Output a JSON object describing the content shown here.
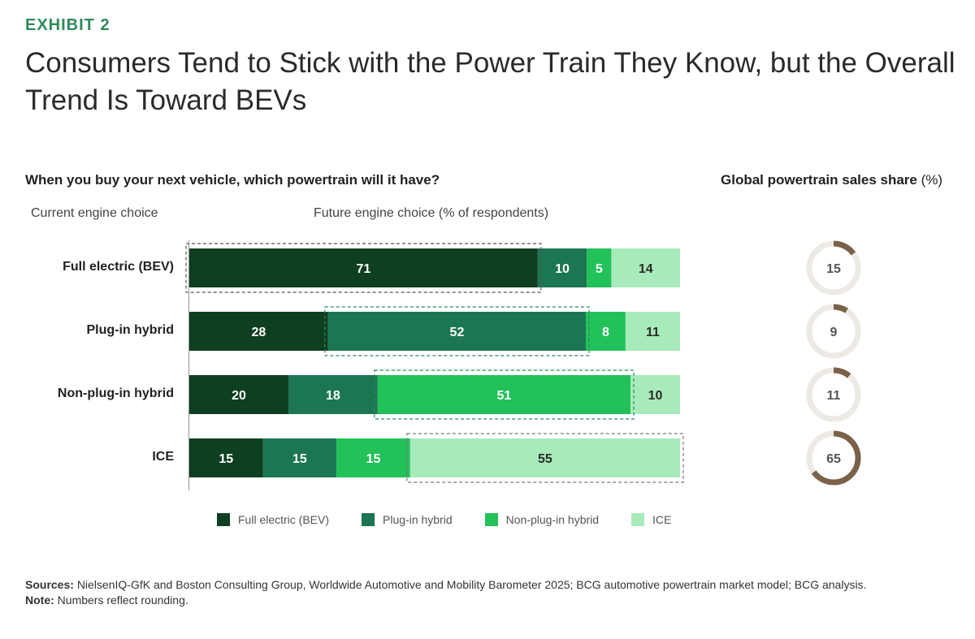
{
  "header": {
    "exhibit": "EXHIBIT 2",
    "title": "Consumers Tend to Stick with the Power Train They Know, but the Overall Trend Is Toward BEVs"
  },
  "question": "When you buy your next vehicle, which powertrain will it have?",
  "sales_title": "Global powertrain sales share",
  "sales_unit": "(%)",
  "current_label": "Current engine choice",
  "future_label": "Future engine choice (% of respondents)",
  "colors": {
    "bev": "#0e3f20",
    "phev": "#1c7652",
    "hev": "#22c15a",
    "ice": "#a8ebba",
    "donut_fill": "#7a6148",
    "donut_track": "#ede9e5"
  },
  "chart_data": {
    "type": "bar",
    "orientation": "horizontal-stacked",
    "xlim": [
      0,
      100
    ],
    "categories": [
      "Full electric (BEV)",
      "Plug-in hybrid",
      "Non-plug-in hybrid",
      "ICE"
    ],
    "series": [
      {
        "name": "Full electric (BEV)",
        "values": [
          71,
          28,
          20,
          15
        ]
      },
      {
        "name": "Plug-in hybrid",
        "values": [
          10,
          52,
          18,
          15
        ]
      },
      {
        "name": "Non-plug-in hybrid",
        "values": [
          5,
          8,
          51,
          15
        ]
      },
      {
        "name": "ICE",
        "values": [
          14,
          11,
          10,
          55
        ]
      }
    ],
    "highlighted_series_per_row": [
      0,
      1,
      2,
      3
    ],
    "sales_share": [
      15,
      9,
      11,
      65
    ]
  },
  "legend": [
    "Full electric (BEV)",
    "Plug-in hybrid",
    "Non-plug-in hybrid",
    "ICE"
  ],
  "sources": {
    "label": "Sources:",
    "text": "NielsenIQ-GfK and Boston Consulting Group, Worldwide Automotive and Mobility Barometer 2025; BCG automotive powertrain market model; BCG analysis.",
    "note_label": "Note:",
    "note_text": "Numbers reflect rounding."
  }
}
